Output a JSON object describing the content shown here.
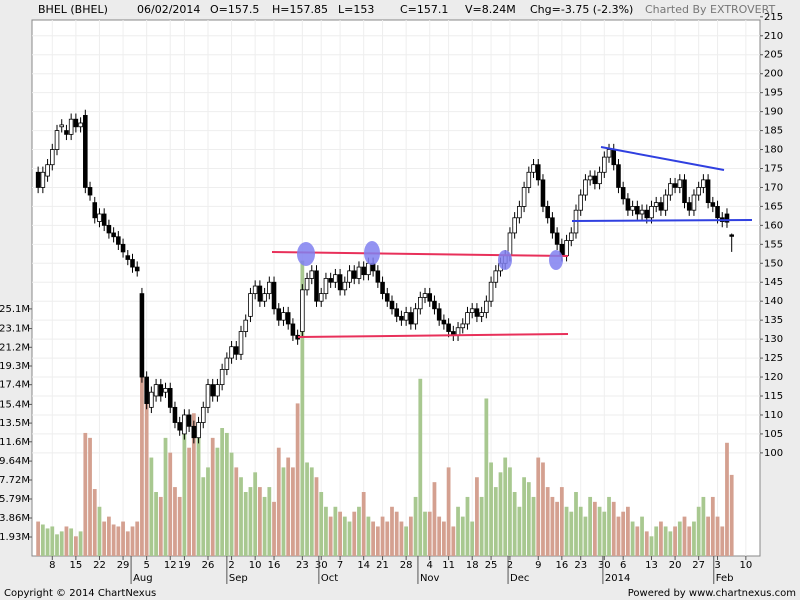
{
  "chart_data": {
    "type": "candlestick",
    "header": [
      "BHEL (BHEL)",
      "06/02/2014",
      "O=157.5",
      "H=157.85",
      "L=153",
      "C=157.1",
      "V=8.24M",
      "Chg=-3.75 (-2.3%)"
    ],
    "credit": "Charted By EXTROVERT",
    "footer_left": "Copyright © 2014 ChartNexus",
    "footer_right": "Powered by www.chartnexus.com",
    "open": [
      174,
      170,
      173,
      176,
      180,
      186,
      185,
      184,
      188,
      186,
      189,
      170,
      166,
      161,
      163,
      160,
      158,
      157,
      155,
      152,
      151,
      149,
      142,
      120,
      112,
      115,
      118,
      116,
      117,
      112,
      108,
      105,
      110,
      107,
      104,
      108,
      112,
      118,
      115,
      118,
      122,
      125,
      128,
      126,
      132,
      136,
      142,
      144,
      140,
      142,
      145,
      138,
      135,
      137,
      134,
      131,
      132,
      143,
      146,
      148,
      140,
      142,
      146,
      145,
      147,
      143,
      145,
      148,
      146,
      149,
      147,
      150,
      148,
      145,
      142,
      140,
      138,
      136,
      135,
      137,
      134,
      138,
      141,
      142,
      140,
      138,
      135,
      134,
      132,
      131,
      133,
      134,
      137,
      138,
      136,
      137,
      140,
      145,
      148,
      150,
      152,
      158,
      162,
      165,
      170,
      174,
      176,
      172,
      165,
      162,
      158,
      155,
      152,
      156,
      158,
      164,
      168,
      172,
      173,
      171,
      174,
      178,
      180,
      176,
      170,
      167,
      164,
      165,
      163,
      164,
      162,
      165,
      166,
      164,
      168,
      171,
      170,
      172,
      166,
      164,
      168,
      170,
      172,
      166,
      165,
      162,
      163,
      157.5
    ],
    "high": [
      175.5,
      175.5,
      177.5,
      181.5,
      186.5,
      188,
      186.5,
      189.5,
      189.5,
      188.5,
      190.5,
      171.5,
      167.5,
      164.5,
      164.5,
      161.5,
      159.5,
      158.5,
      156.5,
      153.5,
      152.5,
      150.5,
      143.5,
      121.5,
      117.5,
      119.5,
      119.5,
      118.5,
      118.5,
      113.5,
      109.5,
      111.5,
      111.5,
      108.5,
      109.5,
      113.5,
      119.5,
      119.5,
      119.5,
      123.5,
      126.5,
      129.5,
      129.5,
      133.5,
      136.5,
      143.5,
      145.5,
      145.5,
      143.5,
      146.5,
      146.5,
      139.5,
      138.5,
      138.5,
      135.5,
      132.5,
      144.5,
      147.5,
      149.5,
      149.5,
      143.5,
      147.5,
      147.5,
      148.5,
      148.5,
      146.5,
      149.5,
      149.5,
      150.5,
      150.5,
      151.5,
      151.5,
      149.5,
      146.5,
      143.5,
      141.5,
      139.5,
      137.5,
      138.5,
      138.5,
      139.5,
      142.5,
      143.5,
      143.5,
      141.5,
      139.5,
      136.5,
      135.5,
      133.5,
      134.5,
      135.5,
      138.5,
      139.5,
      139.5,
      138.5,
      141.5,
      146.5,
      149.5,
      151.5,
      153.5,
      159.5,
      163.5,
      166.5,
      171.5,
      175.5,
      177.5,
      177.5,
      173.5,
      166.5,
      163.5,
      159.5,
      156.5,
      157.5,
      159.5,
      165.5,
      169.5,
      173.5,
      174.5,
      174.5,
      175.5,
      179.5,
      181.5,
      181.5,
      177.5,
      171.5,
      168.5,
      166.5,
      166.5,
      165.5,
      165.5,
      166.5,
      167.5,
      167.5,
      169.5,
      172.5,
      172.5,
      173.5,
      173.5,
      167.5,
      169.5,
      171.5,
      173.5,
      173.5,
      167.5,
      166.5,
      163.5,
      164.5,
      157.85
    ],
    "low": [
      168.5,
      168.5,
      171.5,
      174.5,
      178.5,
      184.5,
      182.5,
      182.5,
      184.5,
      184.5,
      168.5,
      166.5,
      160.5,
      159.5,
      158.5,
      156.5,
      155.5,
      153.5,
      151.5,
      149.5,
      147.5,
      146.5,
      118.5,
      111.5,
      110.5,
      113.5,
      113.5,
      114.5,
      110.5,
      106.5,
      104.5,
      103.5,
      105.5,
      102.5,
      102.5,
      106.5,
      110.5,
      113.5,
      113.5,
      116.5,
      120.5,
      123.5,
      124.5,
      124.5,
      130.5,
      134.5,
      140.5,
      138.5,
      138.5,
      140.5,
      136.5,
      133.5,
      133.5,
      132.5,
      129.5,
      128.5,
      130.5,
      141.5,
      144.5,
      138.5,
      138.5,
      140.5,
      143.5,
      143.5,
      141.5,
      141.5,
      143.5,
      144.5,
      144.5,
      145.5,
      145.5,
      146.5,
      143.5,
      140.5,
      138.5,
      136.5,
      134.5,
      133.5,
      133.5,
      132.5,
      132.5,
      136.5,
      139.5,
      138.5,
      136.5,
      133.5,
      132.5,
      130.5,
      129.5,
      129.5,
      131.5,
      132.5,
      135.5,
      134.5,
      134.5,
      135.5,
      138.5,
      143.5,
      146.5,
      148.5,
      150.5,
      156.5,
      160.5,
      163.5,
      168.5,
      172.5,
      170.5,
      163.5,
      160.5,
      156.5,
      153.5,
      150.5,
      150.5,
      154.5,
      156.5,
      162.5,
      166.5,
      170.5,
      169.5,
      169.5,
      172.5,
      176.5,
      174.5,
      168.5,
      165.5,
      162.5,
      162.5,
      161.5,
      161.5,
      160.5,
      160.5,
      163.5,
      162.5,
      162.5,
      166.5,
      168.5,
      168.5,
      164.5,
      162.5,
      162.5,
      166.5,
      168.5,
      164.5,
      163.5,
      160.5,
      159.5,
      159.35,
      153
    ],
    "close": [
      170,
      174,
      176,
      180,
      185,
      186.5,
      184,
      188,
      186,
      187,
      170,
      168,
      162,
      163,
      160,
      158,
      157,
      155,
      153,
      151,
      149,
      148,
      120,
      113,
      116,
      118,
      115,
      117,
      112,
      108,
      106,
      110,
      107,
      104,
      108,
      112,
      118,
      115,
      118,
      122,
      125,
      128,
      126,
      132,
      135,
      142,
      144,
      140,
      142,
      145,
      138,
      135,
      137,
      134,
      131,
      130,
      143,
      146,
      148,
      140,
      142,
      146,
      145,
      147,
      143,
      145,
      148,
      146,
      149,
      147,
      150,
      148,
      145,
      142,
      140,
      138,
      136,
      135,
      137,
      134,
      138,
      141,
      142,
      140,
      138,
      135,
      134,
      132,
      131,
      133,
      134,
      137,
      138,
      136,
      137,
      140,
      145,
      148,
      150,
      152,
      158,
      162,
      165,
      170,
      174,
      176,
      172,
      165,
      162,
      158,
      155,
      152,
      156,
      158,
      164,
      168,
      172,
      173,
      171,
      174,
      178,
      180,
      176,
      170,
      167,
      164,
      165,
      163,
      164,
      162,
      165,
      166,
      164,
      168,
      171,
      170,
      172,
      166,
      164,
      168,
      170,
      172,
      166,
      165,
      162,
      161,
      160.85,
      157.1
    ],
    "volume": [
      3.5,
      3.2,
      2.8,
      3.0,
      2.2,
      2.5,
      3.0,
      2.8,
      2.0,
      2.5,
      12.5,
      12.0,
      6.8,
      5.0,
      3.5,
      4.0,
      3.2,
      3.0,
      3.5,
      2.5,
      3.0,
      3.5,
      24.0,
      18.0,
      10.0,
      6.5,
      6.0,
      12.0,
      10.5,
      7.0,
      6.0,
      12.5,
      11.0,
      14.5,
      13.0,
      8.0,
      9.0,
      12.0,
      11.0,
      13.0,
      12.5,
      10.5,
      9.0,
      8.0,
      6.5,
      7.0,
      8.5,
      7.0,
      6.0,
      7.0,
      5.5,
      11.0,
      9.0,
      10.0,
      9.0,
      15.5,
      30.0,
      9.5,
      9.0,
      8.0,
      6.5,
      5.0,
      4.0,
      5.0,
      4.5,
      4.0,
      3.5,
      4.5,
      5.0,
      6.5,
      4.0,
      3.5,
      3.0,
      4.0,
      3.5,
      5.0,
      4.5,
      3.5,
      3.0,
      4.0,
      6.0,
      18.0,
      4.5,
      4.5,
      7.5,
      4.0,
      3.5,
      9.0,
      3.0,
      5.0,
      4.0,
      6.0,
      3.5,
      8.0,
      6.0,
      16.0,
      9.5,
      7.0,
      8.5,
      10.0,
      9.0,
      6.5,
      5.0,
      8.0,
      7.5,
      6.0,
      10.0,
      9.5,
      7.0,
      6.0,
      5.5,
      7.0,
      5.0,
      4.5,
      6.5,
      5.0,
      4.0,
      6.0,
      5.5,
      5.0,
      4.5,
      6.0,
      5.5,
      4.0,
      4.5,
      5.0,
      3.5,
      3.0,
      4.0,
      2.5,
      2.0,
      3.0,
      3.5,
      3.0,
      2.5,
      3.0,
      3.5,
      4.0,
      3.0,
      3.5,
      5.0,
      6.0,
      4.0,
      6.0,
      4.0,
      3.0,
      11.5,
      8.24
    ],
    "up_color": "#ffffff",
    "down_color": "#000000",
    "volume_up_color": "#a8c890",
    "volume_down_color": "#d4a090",
    "xlim": [
      -1.3,
      153
    ],
    "xticks": [
      {
        "value": 3,
        "label": "8"
      },
      {
        "value": 8,
        "label": "15"
      },
      {
        "value": 13,
        "label": "22"
      },
      {
        "value": 18,
        "label": "29"
      },
      {
        "value": 23,
        "label": "5"
      },
      {
        "value": 28,
        "label": "12"
      },
      {
        "value": 31,
        "label": "19"
      },
      {
        "value": 36,
        "label": "26"
      },
      {
        "value": 41,
        "label": "2"
      },
      {
        "value": 46,
        "label": "10"
      },
      {
        "value": 50,
        "label": "16"
      },
      {
        "value": 56,
        "label": "23"
      },
      {
        "value": 60,
        "label": "30"
      },
      {
        "value": 64,
        "label": "7"
      },
      {
        "value": 69,
        "label": "14"
      },
      {
        "value": 73,
        "label": "21"
      },
      {
        "value": 78,
        "label": "28"
      },
      {
        "value": 83,
        "label": "4"
      },
      {
        "value": 87,
        "label": "11"
      },
      {
        "value": 92,
        "label": "18"
      },
      {
        "value": 96,
        "label": "25"
      },
      {
        "value": 100,
        "label": "2"
      },
      {
        "value": 106,
        "label": "9"
      },
      {
        "value": 111,
        "label": "16"
      },
      {
        "value": 115,
        "label": "23"
      },
      {
        "value": 120,
        "label": "30"
      },
      {
        "value": 124,
        "label": "6"
      },
      {
        "value": 130,
        "label": "13"
      },
      {
        "value": 135,
        "label": "20"
      },
      {
        "value": 140,
        "label": "27"
      },
      {
        "value": 144,
        "label": "3"
      },
      {
        "value": 150,
        "label": "10"
      }
    ],
    "months": [
      {
        "value": 19.7,
        "label": "Aug"
      },
      {
        "value": 40,
        "label": "Sep"
      },
      {
        "value": 59.5,
        "label": "Oct"
      },
      {
        "value": 80.5,
        "label": "Nov"
      },
      {
        "value": 99.6,
        "label": "Dec"
      },
      {
        "value": 119.7,
        "label": "2014"
      },
      {
        "value": 143.2,
        "label": "Feb"
      }
    ],
    "ylim": [
      72.8,
      216.8
    ],
    "yticks": [
      100,
      105,
      110,
      115,
      120,
      125,
      130,
      135,
      140,
      145,
      150,
      155,
      160,
      165,
      170,
      175,
      180,
      185,
      190,
      195,
      200,
      205,
      210,
      215
    ],
    "y2lim": [
      0,
      55.46
    ],
    "y2ticks": [
      {
        "value": 1.93,
        "label": "1.93M"
      },
      {
        "value": 3.86,
        "label": "3.86M"
      },
      {
        "value": 5.79,
        "label": "5.79M"
      },
      {
        "value": 7.72,
        "label": "7.72M"
      },
      {
        "value": 9.64,
        "label": "9.64M"
      },
      {
        "value": 11.6,
        "label": "11.6M"
      },
      {
        "value": 13.5,
        "label": "13.5M"
      },
      {
        "value": 15.4,
        "label": "15.4M"
      },
      {
        "value": 17.4,
        "label": "17.4M"
      },
      {
        "value": 19.3,
        "label": "19.3M"
      },
      {
        "value": 21.2,
        "label": "21.2M"
      },
      {
        "value": 23.1,
        "label": "23.1M"
      },
      {
        "value": 25.1,
        "label": "25.1M"
      }
    ],
    "grid": true
  }
}
